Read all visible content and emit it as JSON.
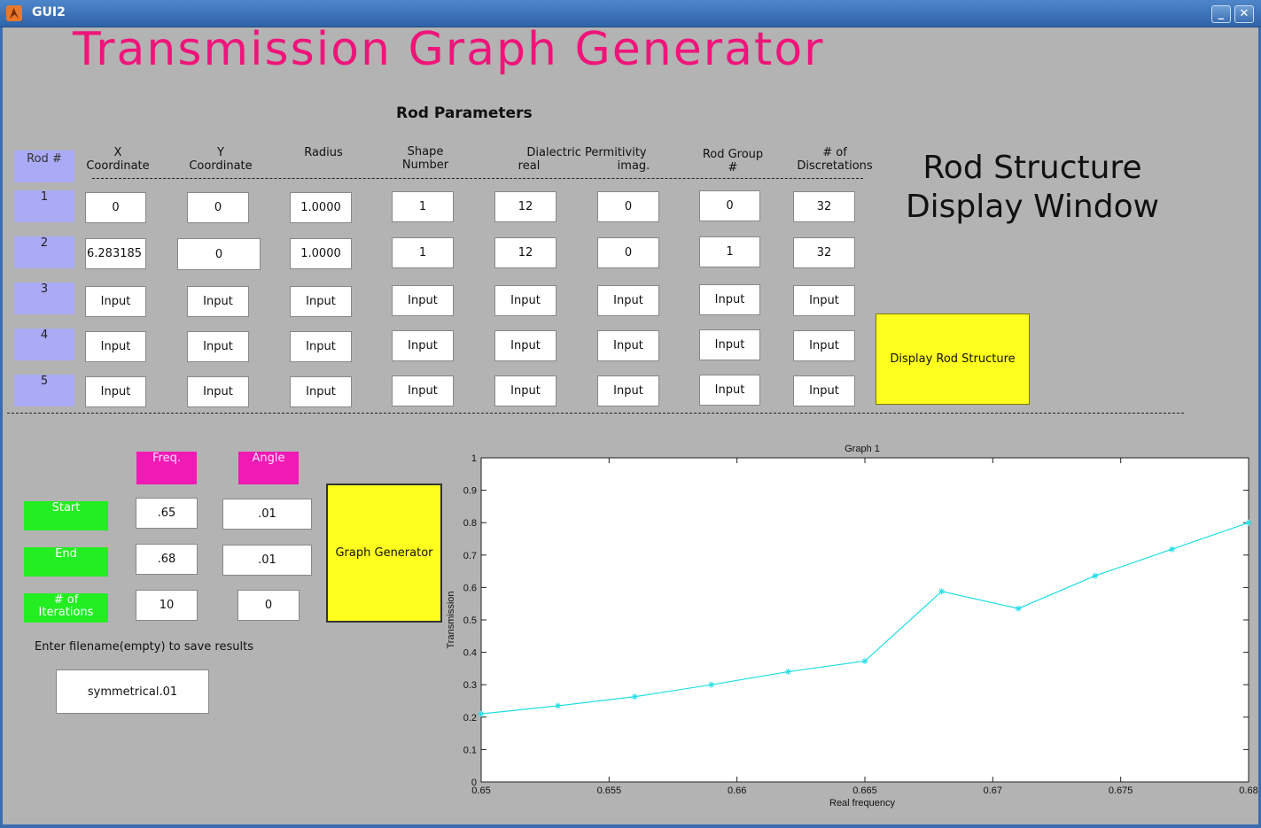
{
  "window": {
    "title": "GUI2",
    "minimize_label": "_",
    "close_label": "✕"
  },
  "app_title": "Transmission Graph Generator",
  "rod_parameters": {
    "title": "Rod Parameters",
    "headers": {
      "rod_num": "Rod #",
      "x_line1": "X",
      "x_line2": "Coordinate",
      "y_line1": "Y",
      "y_line2": "Coordinate",
      "radius": "Radius",
      "shape_line1": "Shape",
      "shape_line2": "Number",
      "perm_line1": "Dialectric Permitivity",
      "perm_real": "real",
      "perm_imag": "imag.",
      "group_line1": "Rod Group",
      "group_line2": "#",
      "disc_line1": "# of",
      "disc_line2": "Discretations"
    },
    "rows": [
      {
        "label": "1",
        "x": "0",
        "y": "0",
        "radius": "1.0000",
        "shape": "1",
        "real": "12",
        "imag": "0",
        "group": "0",
        "disc": "32"
      },
      {
        "label": "2",
        "x": "6.283185",
        "y": "0",
        "radius": "1.0000",
        "shape": "1",
        "real": "12",
        "imag": "0",
        "group": "1",
        "disc": "32"
      },
      {
        "label": "3",
        "x": "Input",
        "y": "Input",
        "radius": "Input",
        "shape": "Input",
        "real": "Input",
        "imag": "Input",
        "group": "Input",
        "disc": "Input"
      },
      {
        "label": "4",
        "x": "Input",
        "y": "Input",
        "radius": "Input",
        "shape": "Input",
        "real": "Input",
        "imag": "Input",
        "group": "Input",
        "disc": "Input"
      },
      {
        "label": "5",
        "x": "Input",
        "y": "Input",
        "radius": "Input",
        "shape": "Input",
        "real": "Input",
        "imag": "Input",
        "group": "Input",
        "disc": "Input"
      }
    ]
  },
  "rod_display": {
    "title_line1": "Rod Structure",
    "title_line2": "Display Window",
    "button_label": "Display Rod Structure"
  },
  "sweep": {
    "freq_label": "Freq.",
    "angle_label": "Angle",
    "start_label": "Start",
    "end_label": "End",
    "iter_label_line1": "# of",
    "iter_label_line2": "Iterations",
    "freq_start": ".65",
    "freq_end": ".68",
    "freq_iter": "10",
    "angle_start": ".01",
    "angle_end": ".01",
    "angle_iter": "0",
    "graph_button_label": "Graph Generator"
  },
  "save": {
    "label": "Enter filename(empty) to save results",
    "filename": "symmetrical.01"
  },
  "colors": {
    "title": "#f0147a",
    "rod_label_bg": "#aaaaf5",
    "magenta": "#f01ab4",
    "green": "#22ee22",
    "yellow": "#ffff1e",
    "series": "#22dde6"
  },
  "chart_data": {
    "type": "line",
    "title": "Graph 1",
    "xlabel": "Real frequency",
    "ylabel": "Transmission",
    "xlim": [
      0.65,
      0.68
    ],
    "ylim": [
      0,
      1
    ],
    "x_ticks": [
      "0.65",
      "0.655",
      "0.66",
      "0.665",
      "0.67",
      "0.675",
      "0.68"
    ],
    "y_ticks": [
      "0",
      "0.1",
      "0.2",
      "0.3",
      "0.4",
      "0.5",
      "0.6",
      "0.7",
      "0.8",
      "0.9",
      "1"
    ],
    "marker": "*",
    "grid": false,
    "series": [
      {
        "x": [
          0.65,
          0.653,
          0.656,
          0.659,
          0.662,
          0.665,
          0.668,
          0.671,
          0.674,
          0.677,
          0.68
        ],
        "y": [
          0.21,
          0.235,
          0.263,
          0.3,
          0.34,
          0.373,
          0.588,
          0.535,
          0.636,
          0.718,
          0.8
        ]
      }
    ]
  }
}
